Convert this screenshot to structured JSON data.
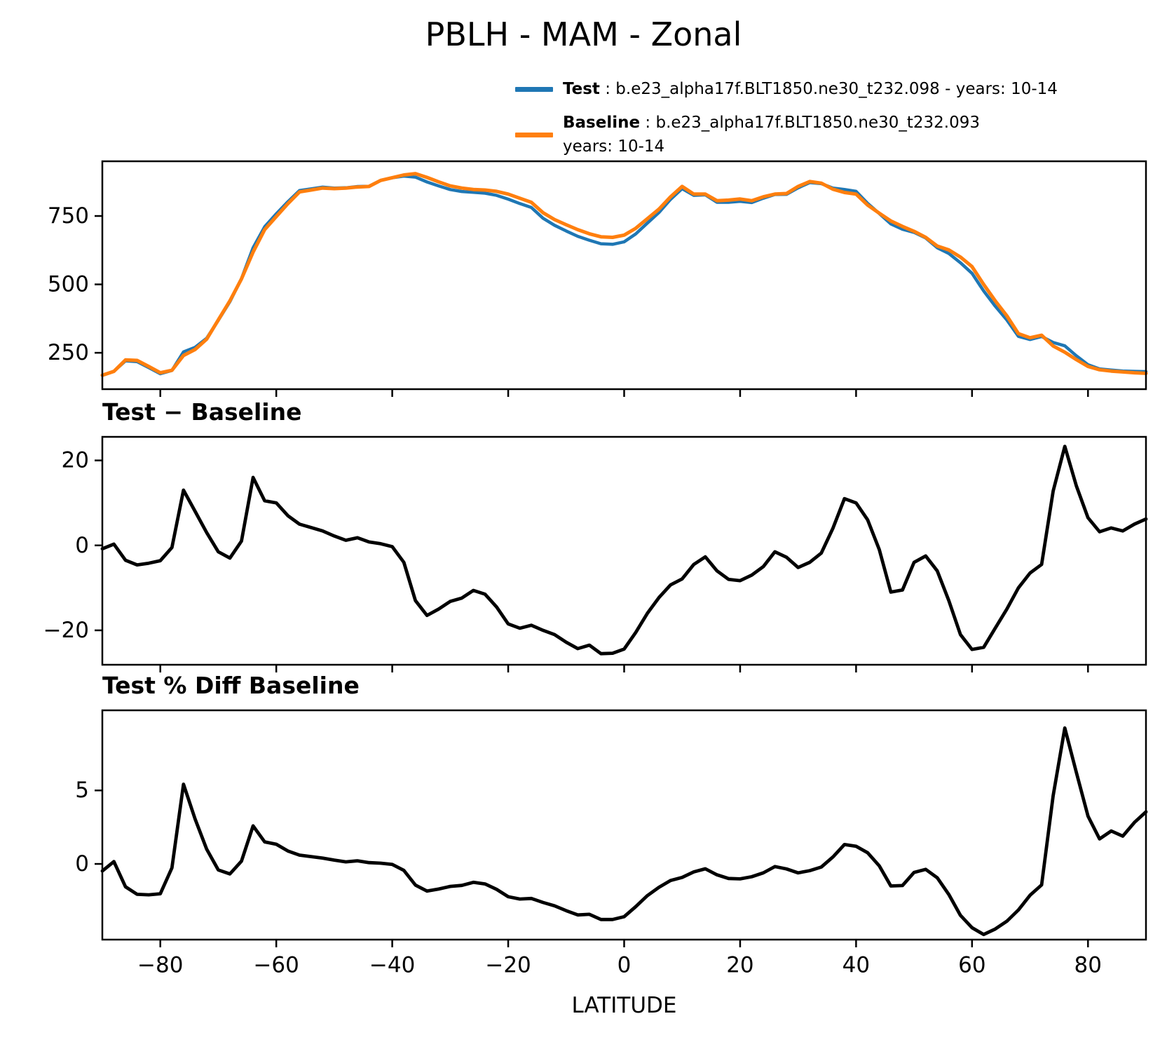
{
  "title": "PBLH - MAM - Zonal",
  "xlabel": "LATITUDE",
  "legend": {
    "test_label": "Test",
    "test_desc": " : b.e23_alpha17f.BLT1850.ne30_t232.098 - years: 10-14",
    "baseline_label": "Baseline",
    "baseline_desc": " : b.e23_alpha17f.BLT1850.ne30_t232.093",
    "baseline_desc2": "years: 10-14",
    "test_color": "#1f77b4",
    "baseline_color": "#ff7f0e"
  },
  "chart_data": [
    {
      "type": "line",
      "title": "PBLH - MAM - Zonal",
      "xlabel": "LATITUDE",
      "ylabel": "",
      "xlim": [
        -90,
        90
      ],
      "ylim": [
        117,
        950
      ],
      "yticks": [
        250,
        500,
        750
      ],
      "y_tick_labels": [
        "250",
        "500",
        "750"
      ],
      "xticks": [
        -80,
        -60,
        -40,
        -20,
        0,
        20,
        40,
        60,
        80
      ],
      "x_tick_labels": [
        "−80",
        "−60",
        "−40",
        "−20",
        "0",
        "20",
        "40",
        "60",
        "80"
      ],
      "show_x_tick_labels": false,
      "grid": false,
      "legend_position": "upper right, above axes",
      "x": [
        -90,
        -88,
        -86,
        -84,
        -82,
        -80,
        -78,
        -76,
        -74,
        -72,
        -70,
        -68,
        -66,
        -64,
        -62,
        -60,
        -58,
        -56,
        -54,
        -52,
        -50,
        -48,
        -46,
        -44,
        -42,
        -40,
        -38,
        -36,
        -34,
        -32,
        -30,
        -28,
        -26,
        -24,
        -22,
        -20,
        -18,
        -16,
        -14,
        -12,
        -10,
        -8,
        -6,
        -4,
        -2,
        0,
        2,
        4,
        6,
        8,
        10,
        12,
        14,
        16,
        18,
        20,
        22,
        24,
        26,
        28,
        30,
        32,
        34,
        36,
        38,
        40,
        42,
        44,
        46,
        48,
        50,
        52,
        54,
        56,
        58,
        60,
        62,
        64,
        66,
        68,
        70,
        72,
        74,
        76,
        78,
        80,
        82,
        84,
        86,
        88,
        90
      ],
      "series": [
        {
          "name": "Test : b.e23_alpha17f.BLT1850.ne30_t232.098 - years: 10-14",
          "color": "#1f77b4",
          "width": 4.5,
          "values": [
            167.2,
            182.3,
            220.5,
            217.4,
            195.8,
            173.4,
            185.5,
            253,
            270,
            303,
            368.5,
            437,
            521,
            634,
            710.5,
            758,
            802,
            843,
            849.2,
            855.4,
            852.2,
            853.2,
            857.8,
            858.8,
            880.4,
            889.7,
            896,
            892,
            874.5,
            860,
            846.8,
            839.6,
            836.4,
            833.5,
            825.5,
            811.5,
            795.5,
            781.2,
            742,
            716,
            695.2,
            675.7,
            661.5,
            648.5,
            646.6,
            655.6,
            684.5,
            724,
            762.7,
            810.7,
            850.1,
            825.5,
            827.3,
            800,
            800,
            803.7,
            799,
            815,
            828.5,
            829.2,
            852.8,
            872,
            868.2,
            852,
            847,
            840,
            796,
            759,
            721,
            701.5,
            690,
            669.5,
            634,
            613,
            579,
            540.5,
            476,
            420.5,
            370,
            310,
            298.5,
            309.5,
            287.8,
            275.3,
            239,
            206.5,
            191.2,
            187.1,
            183.4,
            182,
            181.2
          ]
        },
        {
          "name": "Baseline : b.e23_alpha17f.BLT1850.ne30_t232.093 years: 10-14",
          "color": "#ff7f0e",
          "width": 5,
          "values": [
            168,
            182,
            224,
            222,
            200,
            177,
            186,
            240,
            262,
            300,
            370,
            440,
            520,
            618,
            700,
            748,
            795,
            838,
            845,
            852,
            850,
            852,
            856,
            858,
            880,
            890,
            900,
            905,
            891,
            875,
            860,
            852,
            847,
            845,
            840,
            830,
            815,
            800,
            762,
            737,
            718,
            700,
            685,
            674,
            672,
            680,
            705,
            740,
            775,
            820,
            858,
            830,
            830,
            806,
            808,
            812,
            806,
            820,
            830,
            832,
            858,
            876,
            870,
            848,
            836,
            830,
            790,
            760,
            732,
            712,
            694,
            672,
            640,
            626,
            600,
            565,
            500,
            440,
            385,
            320,
            305,
            314,
            275,
            252,
            225,
            200,
            188,
            183,
            180,
            177,
            175
          ]
        }
      ]
    },
    {
      "type": "line",
      "title": "Test − Baseline",
      "xlim": [
        -90,
        90
      ],
      "ylim": [
        -28.1,
        25.55
      ],
      "yticks": [
        -20,
        0,
        20
      ],
      "y_tick_labels": [
        "−20",
        "0",
        "20"
      ],
      "xticks": [
        -80,
        -60,
        -40,
        -20,
        0,
        20,
        40,
        60,
        80
      ],
      "x_tick_labels": [
        "−80",
        "−60",
        "−40",
        "−20",
        "0",
        "20",
        "40",
        "60",
        "80"
      ],
      "show_x_tick_labels": false,
      "grid": false,
      "x": [
        -90,
        -88,
        -86,
        -84,
        -82,
        -80,
        -78,
        -76,
        -74,
        -72,
        -70,
        -68,
        -66,
        -64,
        -62,
        -60,
        -58,
        -56,
        -54,
        -52,
        -50,
        -48,
        -46,
        -44,
        -42,
        -40,
        -38,
        -36,
        -34,
        -32,
        -30,
        -28,
        -26,
        -24,
        -22,
        -20,
        -18,
        -16,
        -14,
        -12,
        -10,
        -8,
        -6,
        -4,
        -2,
        0,
        2,
        4,
        6,
        8,
        10,
        12,
        14,
        16,
        18,
        20,
        22,
        24,
        26,
        28,
        30,
        32,
        34,
        36,
        38,
        40,
        42,
        44,
        46,
        48,
        50,
        52,
        54,
        56,
        58,
        60,
        62,
        64,
        66,
        68,
        70,
        72,
        74,
        76,
        78,
        80,
        82,
        84,
        86,
        88,
        90
      ],
      "series": [
        {
          "name": "Test minus Baseline",
          "color": "#000000",
          "width": 4.8,
          "values": [
            -0.8,
            0.3,
            -3.5,
            -4.6,
            -4.2,
            -3.6,
            -0.5,
            13,
            8,
            3,
            -1.5,
            -3,
            1,
            16,
            10.5,
            10,
            7,
            5,
            4.2,
            3.4,
            2.2,
            1.2,
            1.8,
            0.8,
            0.4,
            -0.3,
            -4,
            -13,
            -16.5,
            -15,
            -13.2,
            -12.4,
            -10.6,
            -11.5,
            -14.5,
            -18.5,
            -19.5,
            -18.8,
            -20,
            -21,
            -22.8,
            -24.3,
            -23.5,
            -25.5,
            -25.4,
            -24.4,
            -20.5,
            -16,
            -12.3,
            -9.3,
            -7.9,
            -4.5,
            -2.7,
            -6,
            -8,
            -8.3,
            -7,
            -5,
            -1.5,
            -2.8,
            -5.2,
            -4,
            -1.8,
            4,
            11,
            10,
            6,
            -1,
            -11,
            -10.5,
            -4,
            -2.5,
            -6,
            -13,
            -21,
            -24.5,
            -24,
            -19.5,
            -15,
            -10,
            -6.5,
            -4.5,
            12.8,
            23.3,
            14,
            6.5,
            3.2,
            4.1,
            3.4,
            5,
            6.2
          ]
        }
      ]
    },
    {
      "type": "line",
      "title": "Test % Diff Baseline",
      "xlabel": "LATITUDE",
      "xlim": [
        -90,
        90
      ],
      "ylim": [
        -5.15,
        10.45
      ],
      "yticks": [
        0,
        5
      ],
      "y_tick_labels": [
        "0",
        "5"
      ],
      "xticks": [
        -80,
        -60,
        -40,
        -20,
        0,
        20,
        40,
        60,
        80
      ],
      "x_tick_labels": [
        "−80",
        "−60",
        "−40",
        "−20",
        "0",
        "20",
        "40",
        "60",
        "80"
      ],
      "show_x_tick_labels": true,
      "grid": false,
      "x": [
        -90,
        -88,
        -86,
        -84,
        -82,
        -80,
        -78,
        -76,
        -74,
        -72,
        -70,
        -68,
        -66,
        -64,
        -62,
        -60,
        -58,
        -56,
        -54,
        -52,
        -50,
        -48,
        -46,
        -44,
        -42,
        -40,
        -38,
        -36,
        -34,
        -32,
        -30,
        -28,
        -26,
        -24,
        -22,
        -20,
        -18,
        -16,
        -14,
        -12,
        -10,
        -8,
        -6,
        -4,
        -2,
        0,
        2,
        4,
        6,
        8,
        10,
        12,
        14,
        16,
        18,
        20,
        22,
        24,
        26,
        28,
        30,
        32,
        34,
        36,
        38,
        40,
        42,
        44,
        46,
        48,
        50,
        52,
        54,
        56,
        58,
        60,
        62,
        64,
        66,
        68,
        70,
        72,
        74,
        76,
        78,
        80,
        82,
        84,
        86,
        88,
        90
      ],
      "series": [
        {
          "name": "Test percent difference from Baseline",
          "color": "#000000",
          "width": 4.8,
          "values": [
            -0.48,
            0.16,
            -1.56,
            -2.07,
            -2.1,
            -2.03,
            -0.27,
            5.42,
            3.05,
            1.0,
            -0.41,
            -0.68,
            0.19,
            2.59,
            1.5,
            1.34,
            0.88,
            0.6,
            0.5,
            0.4,
            0.26,
            0.14,
            0.21,
            0.09,
            0.05,
            -0.03,
            -0.44,
            -1.44,
            -1.85,
            -1.71,
            -1.53,
            -1.46,
            -1.25,
            -1.36,
            -1.73,
            -2.23,
            -2.39,
            -2.35,
            -2.62,
            -2.85,
            -3.18,
            -3.47,
            -3.43,
            -3.78,
            -3.78,
            -3.59,
            -2.91,
            -2.16,
            -1.59,
            -1.13,
            -0.92,
            -0.54,
            -0.33,
            -0.74,
            -0.99,
            -1.02,
            -0.87,
            -0.61,
            -0.18,
            -0.34,
            -0.61,
            -0.46,
            -0.21,
            0.47,
            1.32,
            1.2,
            0.76,
            -0.13,
            -1.5,
            -1.47,
            -0.58,
            -0.37,
            -0.94,
            -2.08,
            -3.5,
            -4.34,
            -4.8,
            -4.43,
            -3.9,
            -3.13,
            -2.13,
            -1.43,
            4.65,
            9.25,
            6.22,
            3.25,
            1.7,
            2.24,
            1.89,
            2.82,
            3.54
          ]
        }
      ]
    }
  ]
}
